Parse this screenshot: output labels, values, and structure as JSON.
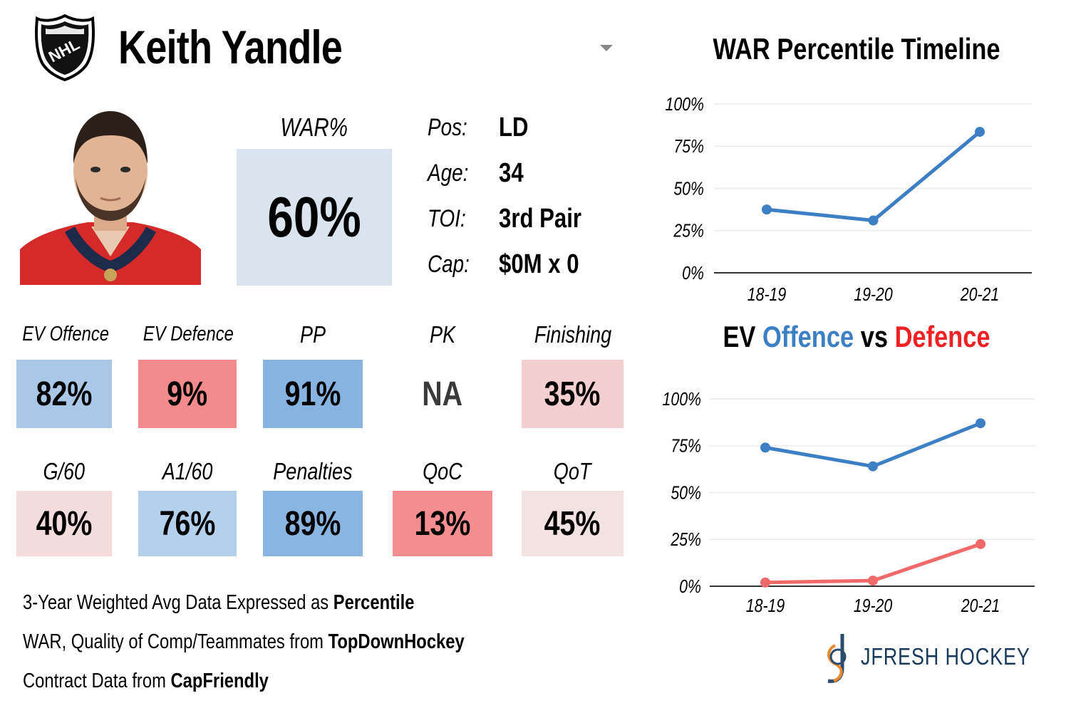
{
  "header": {
    "player_name": "Keith Yandle",
    "logo_text": "NHL"
  },
  "war": {
    "label": "WAR%",
    "value": "60%"
  },
  "info": [
    {
      "label": "Pos:",
      "value": "LD"
    },
    {
      "label": "Age:",
      "value": "34"
    },
    {
      "label": "TOI:",
      "value": "3rd Pair"
    },
    {
      "label": "Cap:",
      "value": "$0M x 0"
    }
  ],
  "stats_row1": [
    {
      "label": "EV Offence",
      "value": "82%",
      "color": "#a9c8e8"
    },
    {
      "label": "EV Defence",
      "value": "9%",
      "color": "#f28b8b"
    },
    {
      "label": "PP",
      "value": "91%",
      "color": "#86b3e0"
    },
    {
      "label": "PK",
      "value": "NA",
      "color": "#ffffff"
    },
    {
      "label": "Finishing",
      "value": "35%",
      "color": "#f4cfcf"
    }
  ],
  "stats_row2": [
    {
      "label": "G/60",
      "value": "40%",
      "color": "#f4dcdc"
    },
    {
      "label": "A1/60",
      "value": "76%",
      "color": "#b3d0ec"
    },
    {
      "label": "Penalties",
      "value": "89%",
      "color": "#89b5e1"
    },
    {
      "label": "QoC",
      "value": "13%",
      "color": "#f28e8e"
    },
    {
      "label": "QoT",
      "value": "45%",
      "color": "#f3e2e2"
    }
  ],
  "footnotes": {
    "line1_prefix": "3-Year Weighted Avg Data Expressed as ",
    "line1_bold": "Percentile",
    "line2_prefix": "WAR, Quality of Comp/Teammates from ",
    "line2_bold": "TopDownHockey",
    "line3_prefix": "Contract Data from ",
    "line3_bold": "CapFriendly"
  },
  "branding": {
    "text": "JFRESH HOCKEY"
  },
  "chart_data": [
    {
      "type": "line",
      "title": "WAR Percentile Timeline",
      "categories": [
        "18-19",
        "19-20",
        "20-21"
      ],
      "series": [
        {
          "name": "WAR",
          "values": [
            37.5,
            31,
            83.5
          ],
          "color": "#3d7fc4"
        }
      ],
      "ylim": [
        0,
        100
      ],
      "yticks": [
        "0%",
        "25%",
        "50%",
        "75%",
        "100%"
      ],
      "ytick_values": [
        0,
        25,
        50,
        75,
        100
      ],
      "grid": true
    },
    {
      "type": "line",
      "title_parts": [
        {
          "text": "EV ",
          "color": "#000000"
        },
        {
          "text": "Offence",
          "color": "#3d7fc4"
        },
        {
          "text": " vs ",
          "color": "#000000"
        },
        {
          "text": "Defence",
          "color": "#ee2222"
        }
      ],
      "categories": [
        "18-19",
        "19-20",
        "20-21"
      ],
      "series": [
        {
          "name": "Offence",
          "values": [
            74,
            64,
            87
          ],
          "color": "#3d7fc4"
        },
        {
          "name": "Defence",
          "values": [
            2,
            3,
            22.5
          ],
          "color": "#f06a6a"
        }
      ],
      "ylim": [
        0,
        100
      ],
      "yticks": [
        "0%",
        "25%",
        "50%",
        "75%",
        "100%"
      ],
      "ytick_values": [
        0,
        25,
        50,
        75,
        100
      ],
      "grid": true
    }
  ]
}
